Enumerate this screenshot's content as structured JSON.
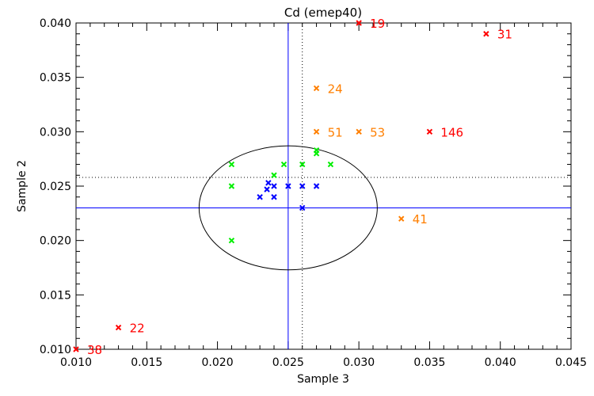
{
  "chart_data": {
    "type": "scatter",
    "title": "Cd (emep40)",
    "xlabel": "Sample 3",
    "ylabel": "Sample 2",
    "xlim": [
      0.01,
      0.045
    ],
    "ylim": [
      0.01,
      0.04
    ],
    "xticks": [
      "0.010",
      "0.015",
      "0.020",
      "0.025",
      "0.030",
      "0.035",
      "0.040",
      "0.045"
    ],
    "yticks": [
      "0.010",
      "0.015",
      "0.020",
      "0.025",
      "0.030",
      "0.035",
      "0.040"
    ],
    "grid": false,
    "colors": {
      "red": "#ff0000",
      "orange": "#ff7f00",
      "green": "#00ee00",
      "blue": "#0000ff",
      "axis": "#000000"
    },
    "series": [
      {
        "name": "red-labeled",
        "color": "#ff0000",
        "points": [
          {
            "x": 0.03,
            "y": 0.04,
            "label": "19"
          },
          {
            "x": 0.039,
            "y": 0.039,
            "label": "31"
          },
          {
            "x": 0.035,
            "y": 0.03,
            "label": "146"
          },
          {
            "x": 0.013,
            "y": 0.012,
            "label": "22"
          },
          {
            "x": 0.01,
            "y": 0.01,
            "label": "38"
          }
        ]
      },
      {
        "name": "orange-labeled",
        "color": "#ff7f00",
        "points": [
          {
            "x": 0.027,
            "y": 0.034,
            "label": "24"
          },
          {
            "x": 0.027,
            "y": 0.03,
            "label": "51"
          },
          {
            "x": 0.03,
            "y": 0.03,
            "label": "53"
          },
          {
            "x": 0.033,
            "y": 0.022,
            "label": "41"
          }
        ]
      },
      {
        "name": "green",
        "color": "#00ee00",
        "points": [
          {
            "x": 0.021,
            "y": 0.027
          },
          {
            "x": 0.021,
            "y": 0.025
          },
          {
            "x": 0.021,
            "y": 0.02
          },
          {
            "x": 0.024,
            "y": 0.026
          },
          {
            "x": 0.0247,
            "y": 0.027
          },
          {
            "x": 0.026,
            "y": 0.027
          },
          {
            "x": 0.027,
            "y": 0.0283
          },
          {
            "x": 0.027,
            "y": 0.028
          },
          {
            "x": 0.028,
            "y": 0.027
          }
        ]
      },
      {
        "name": "blue",
        "color": "#0000ff",
        "points": [
          {
            "x": 0.0236,
            "y": 0.0253
          },
          {
            "x": 0.0235,
            "y": 0.0247
          },
          {
            "x": 0.024,
            "y": 0.025
          },
          {
            "x": 0.025,
            "y": 0.025
          },
          {
            "x": 0.026,
            "y": 0.025
          },
          {
            "x": 0.027,
            "y": 0.025
          },
          {
            "x": 0.023,
            "y": 0.024
          },
          {
            "x": 0.024,
            "y": 0.024
          },
          {
            "x": 0.026,
            "y": 0.023
          }
        ]
      }
    ],
    "reference_lines": {
      "mean_x": 0.025,
      "mean_y": 0.023,
      "dotted_x": 0.026,
      "dotted_y": 0.0258
    },
    "ellipse": {
      "cx": 0.025,
      "cy": 0.023,
      "rx": 0.0063,
      "ry": 0.0057
    }
  }
}
